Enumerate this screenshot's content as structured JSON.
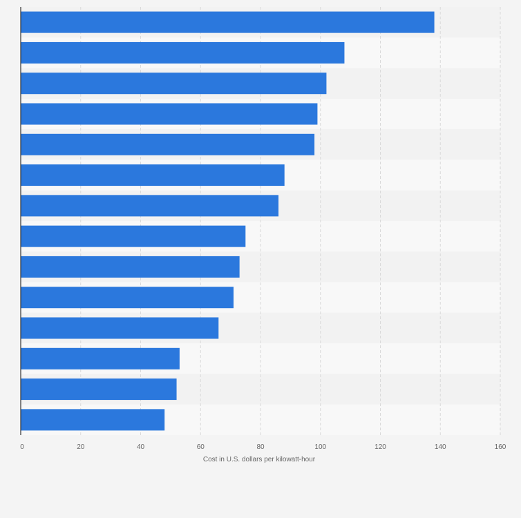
{
  "chart_data": {
    "type": "bar",
    "orientation": "horizontal",
    "categories": [
      "",
      "",
      "",
      "",
      "",
      "",
      "",
      "",
      "",
      "",
      "",
      "",
      "",
      ""
    ],
    "values": [
      138,
      108,
      102,
      99,
      98,
      88,
      86,
      75,
      73,
      71,
      66,
      53,
      52,
      48
    ],
    "xlabel": "Cost in U.S. dollars per kilowatt-hour",
    "ylabel": "",
    "xlim": [
      0,
      160
    ],
    "ticks": [
      0,
      20,
      40,
      60,
      80,
      100,
      120,
      140,
      160
    ],
    "tick_labels": [
      "0",
      "20",
      "40",
      "60",
      "80",
      "100",
      "120",
      "140",
      "160"
    ],
    "grid": "vertical dashed",
    "legend": "none",
    "colors": {
      "bar": "#2b78dd",
      "background": "#f4f4f4",
      "band_light": "#f8f8f8",
      "band_dark": "#f2f2f2",
      "grid": "#d9d9d9",
      "axis": "#333333",
      "text": "#666666"
    }
  }
}
